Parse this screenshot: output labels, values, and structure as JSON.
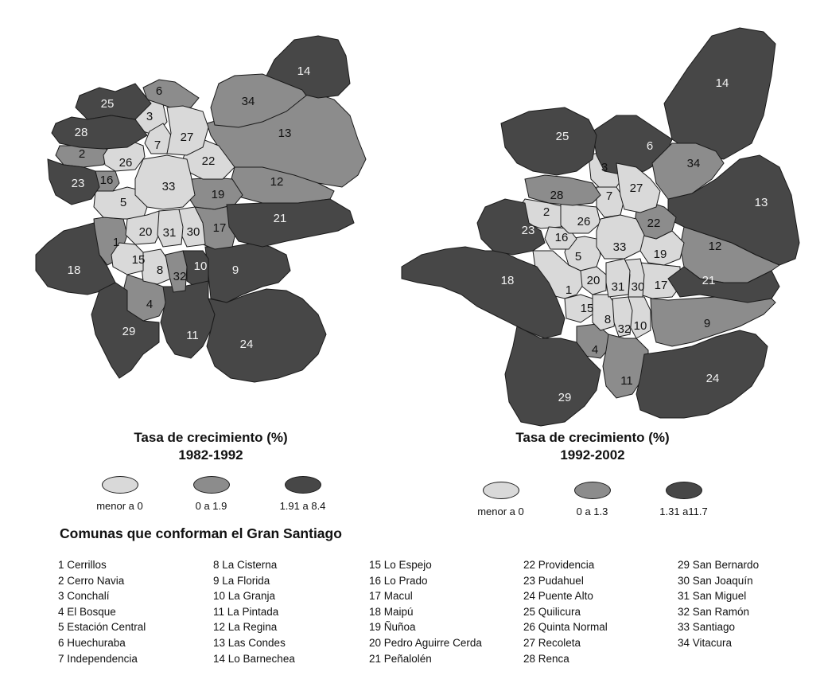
{
  "colors": {
    "menor": "#d9d9d9",
    "medio": "#8c8c8c",
    "alto": "#474747",
    "outline": "#1a1a1a"
  },
  "maps": [
    {
      "title": "Tasa de crecimiento (%)",
      "period": "1982-1992",
      "legend": [
        {
          "label": "menor a 0",
          "class": "menor"
        },
        {
          "label": "0 a 1.9",
          "class": "medio"
        },
        {
          "label": "1.91 a 8.4",
          "class": "alto"
        }
      ],
      "comunas": {
        "1": "medio",
        "2": "medio",
        "3": "menor",
        "4": "medio",
        "5": "menor",
        "6": "medio",
        "7": "menor",
        "8": "menor",
        "9": "alto",
        "10": "alto",
        "11": "alto",
        "12": "medio",
        "13": "medio",
        "14": "alto",
        "15": "menor",
        "16": "medio",
        "17": "medio",
        "18": "alto",
        "19": "medio",
        "20": "menor",
        "21": "alto",
        "22": "menor",
        "23": "alto",
        "24": "alto",
        "25": "alto",
        "26": "menor",
        "27": "menor",
        "28": "alto",
        "29": "alto",
        "30": "menor",
        "31": "menor",
        "32": "medio",
        "33": "menor",
        "34": "medio"
      }
    },
    {
      "title": "Tasa de crecimiento (%)",
      "period": "1992-2002",
      "legend": [
        {
          "label": "menor a 0",
          "class": "menor"
        },
        {
          "label": "0 a 1.3",
          "class": "medio"
        },
        {
          "label": "1.31 a11.7",
          "class": "alto"
        }
      ],
      "comunas": {
        "1": "menor",
        "2": "menor",
        "3": "menor",
        "4": "medio",
        "5": "menor",
        "6": "alto",
        "7": "menor",
        "8": "menor",
        "9": "medio",
        "10": "menor",
        "11": "medio",
        "12": "medio",
        "13": "alto",
        "14": "alto",
        "15": "menor",
        "16": "menor",
        "17": "menor",
        "18": "alto",
        "19": "menor",
        "20": "menor",
        "21": "alto",
        "22": "medio",
        "23": "alto",
        "24": "alto",
        "25": "alto",
        "26": "menor",
        "27": "menor",
        "28": "medio",
        "29": "alto",
        "30": "menor",
        "31": "menor",
        "32": "menor",
        "33": "menor",
        "34": "medio"
      }
    }
  ],
  "list_title": "Comunas que conforman el Gran Santiago",
  "list_columns": [
    [
      "1 Cerrillos",
      "2 Cerro Navia",
      "3 Conchalí",
      "4 El Bosque",
      "5 Estación Central",
      "6 Huechuraba",
      "7 Independencia"
    ],
    [
      "8 La Cisterna",
      "9 La Florida",
      "10 La Granja",
      "11 La Pintada",
      "12 La Regina",
      "13 Las Condes",
      "14 Lo Barnechea"
    ],
    [
      "15 Lo Espejo",
      "16 Lo Prado",
      "17 Macul",
      "18 Maipú",
      "19 Ñuñoa",
      "20 Pedro Aguirre Cerda",
      "21 Peñalolén"
    ],
    [
      "22 Providencia",
      "23 Pudahuel",
      "24 Puente Alto",
      "25 Quilicura",
      "26 Quinta Normal",
      "27 Recoleta",
      "28 Renca"
    ],
    [
      "29 San Bernardo",
      "30 San Joaquín",
      "31 San Miguel",
      "32 San Ramón",
      "33 Santiago",
      "34 Vitacura"
    ]
  ]
}
